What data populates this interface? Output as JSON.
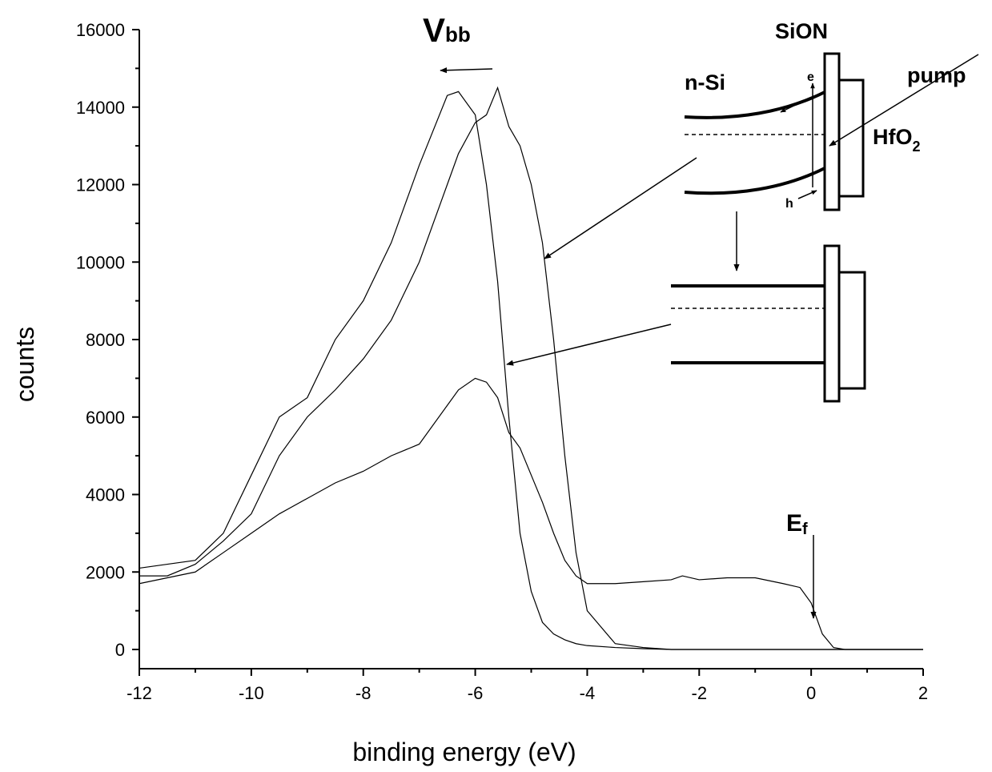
{
  "chart_data": {
    "type": "line",
    "x": [
      -12,
      -11.5,
      -11,
      -10.5,
      -10,
      -9.5,
      -9,
      -8.5,
      -8,
      -7.5,
      -7,
      -6.5,
      -6.3,
      -6,
      -5.8,
      -5.6,
      -5.4,
      -5.2,
      -5,
      -4.8,
      -4.6,
      -4.4,
      -4.2,
      -4,
      -3.5,
      -3,
      -2.5,
      -2.3,
      -2,
      -1.5,
      -1,
      -0.5,
      -0.2,
      0,
      0.2,
      0.4,
      0.6,
      1,
      2
    ],
    "series": [
      {
        "color": "#000000",
        "values": [
          2100,
          2200,
          2300,
          3000,
          4500,
          6000,
          6500,
          8000,
          9000,
          10500,
          12500,
          14300,
          14400,
          13800,
          12000,
          9500,
          6000,
          3000,
          1500,
          700,
          400,
          250,
          150,
          100,
          50,
          20,
          0,
          0,
          0,
          0,
          0,
          0,
          0,
          0,
          0,
          0,
          0,
          0,
          0
        ]
      },
      {
        "color": "#000000",
        "values": [
          1900,
          1900,
          2200,
          2800,
          3500,
          5000,
          6000,
          6700,
          7500,
          8500,
          10000,
          12000,
          12800,
          13600,
          13800,
          14500,
          13500,
          13000,
          12000,
          10500,
          8000,
          5000,
          2500,
          1000,
          150,
          50,
          0,
          0,
          0,
          0,
          0,
          0,
          0,
          0,
          0,
          0,
          0,
          0,
          0
        ]
      },
      {
        "color": "#000000",
        "values": [
          1700,
          1850,
          2000,
          2500,
          3000,
          3500,
          3900,
          4300,
          4600,
          5000,
          5300,
          6300,
          6700,
          7000,
          6900,
          6500,
          5600,
          5200,
          4500,
          3800,
          3000,
          2300,
          1900,
          1700,
          1700,
          1750,
          1800,
          1900,
          1800,
          1850,
          1850,
          1700,
          1600,
          1200,
          400,
          50,
          0,
          0,
          0
        ]
      }
    ],
    "xlim": [
      -12,
      2
    ],
    "xticks": [
      -12,
      -10,
      -8,
      -6,
      -4,
      -2,
      0,
      2
    ],
    "ylim": [
      0,
      16000
    ],
    "yticks": [
      0,
      2000,
      4000,
      6000,
      8000,
      10000,
      12000,
      14000,
      16000
    ],
    "x_label": "binding energy (eV)",
    "y_label": "counts",
    "annotations": [
      {
        "text": "V",
        "subscript": "bb"
      },
      {
        "text": "SiON"
      },
      {
        "text": "n-Si"
      },
      {
        "text": "pump"
      },
      {
        "text": "HfO",
        "subscript": "2"
      },
      {
        "text": "e"
      },
      {
        "text": "h"
      },
      {
        "text": "E",
        "subscript": "f"
      }
    ]
  }
}
